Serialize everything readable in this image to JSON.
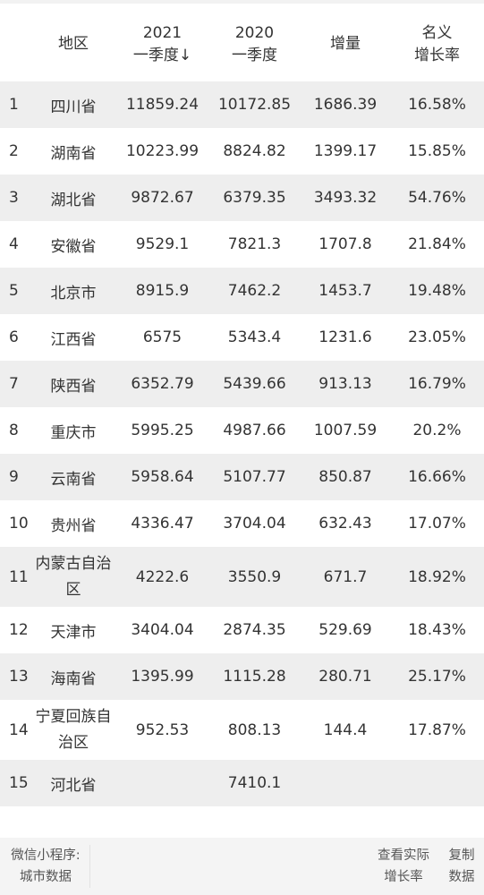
{
  "table": {
    "headers": [
      "",
      "地区",
      "2021\n一季度↓",
      "2020\n一季度",
      "增量",
      "名义\n增长率"
    ],
    "rows": [
      [
        "1",
        "四川省",
        "11859.24",
        "10172.85",
        "1686.39",
        "16.58%"
      ],
      [
        "2",
        "湖南省",
        "10223.99",
        "8824.82",
        "1399.17",
        "15.85%"
      ],
      [
        "3",
        "湖北省",
        "9872.67",
        "6379.35",
        "3493.32",
        "54.76%"
      ],
      [
        "4",
        "安徽省",
        "9529.1",
        "7821.3",
        "1707.8",
        "21.84%"
      ],
      [
        "5",
        "北京市",
        "8915.9",
        "7462.2",
        "1453.7",
        "19.48%"
      ],
      [
        "6",
        "江西省",
        "6575",
        "5343.4",
        "1231.6",
        "23.05%"
      ],
      [
        "7",
        "陕西省",
        "6352.79",
        "5439.66",
        "913.13",
        "16.79%"
      ],
      [
        "8",
        "重庆市",
        "5995.25",
        "4987.66",
        "1007.59",
        "20.2%"
      ],
      [
        "9",
        "云南省",
        "5958.64",
        "5107.77",
        "850.87",
        "16.66%"
      ],
      [
        "10",
        "贵州省",
        "4336.47",
        "3704.04",
        "632.43",
        "17.07%"
      ],
      [
        "11",
        "内蒙古自治\n区",
        "4222.6",
        "3550.9",
        "671.7",
        "18.92%"
      ],
      [
        "12",
        "天津市",
        "3404.04",
        "2874.35",
        "529.69",
        "18.43%"
      ],
      [
        "13",
        "海南省",
        "1395.99",
        "1115.28",
        "280.71",
        "25.17%"
      ],
      [
        "14",
        "宁夏回族自\n治区",
        "952.53",
        "808.13",
        "144.4",
        "17.87%"
      ],
      [
        "15",
        "河北省",
        "",
        "7410.1",
        "",
        ""
      ]
    ]
  },
  "footer": {
    "source_label": "微信小程序:\n城市数据",
    "view_growth_link": "查看实际\n增长率",
    "copy_data_link": "复制\n数据"
  },
  "colors": {
    "stripe": "#eeeeee",
    "footer_bg": "#f4f4f4",
    "text": "#333333"
  }
}
